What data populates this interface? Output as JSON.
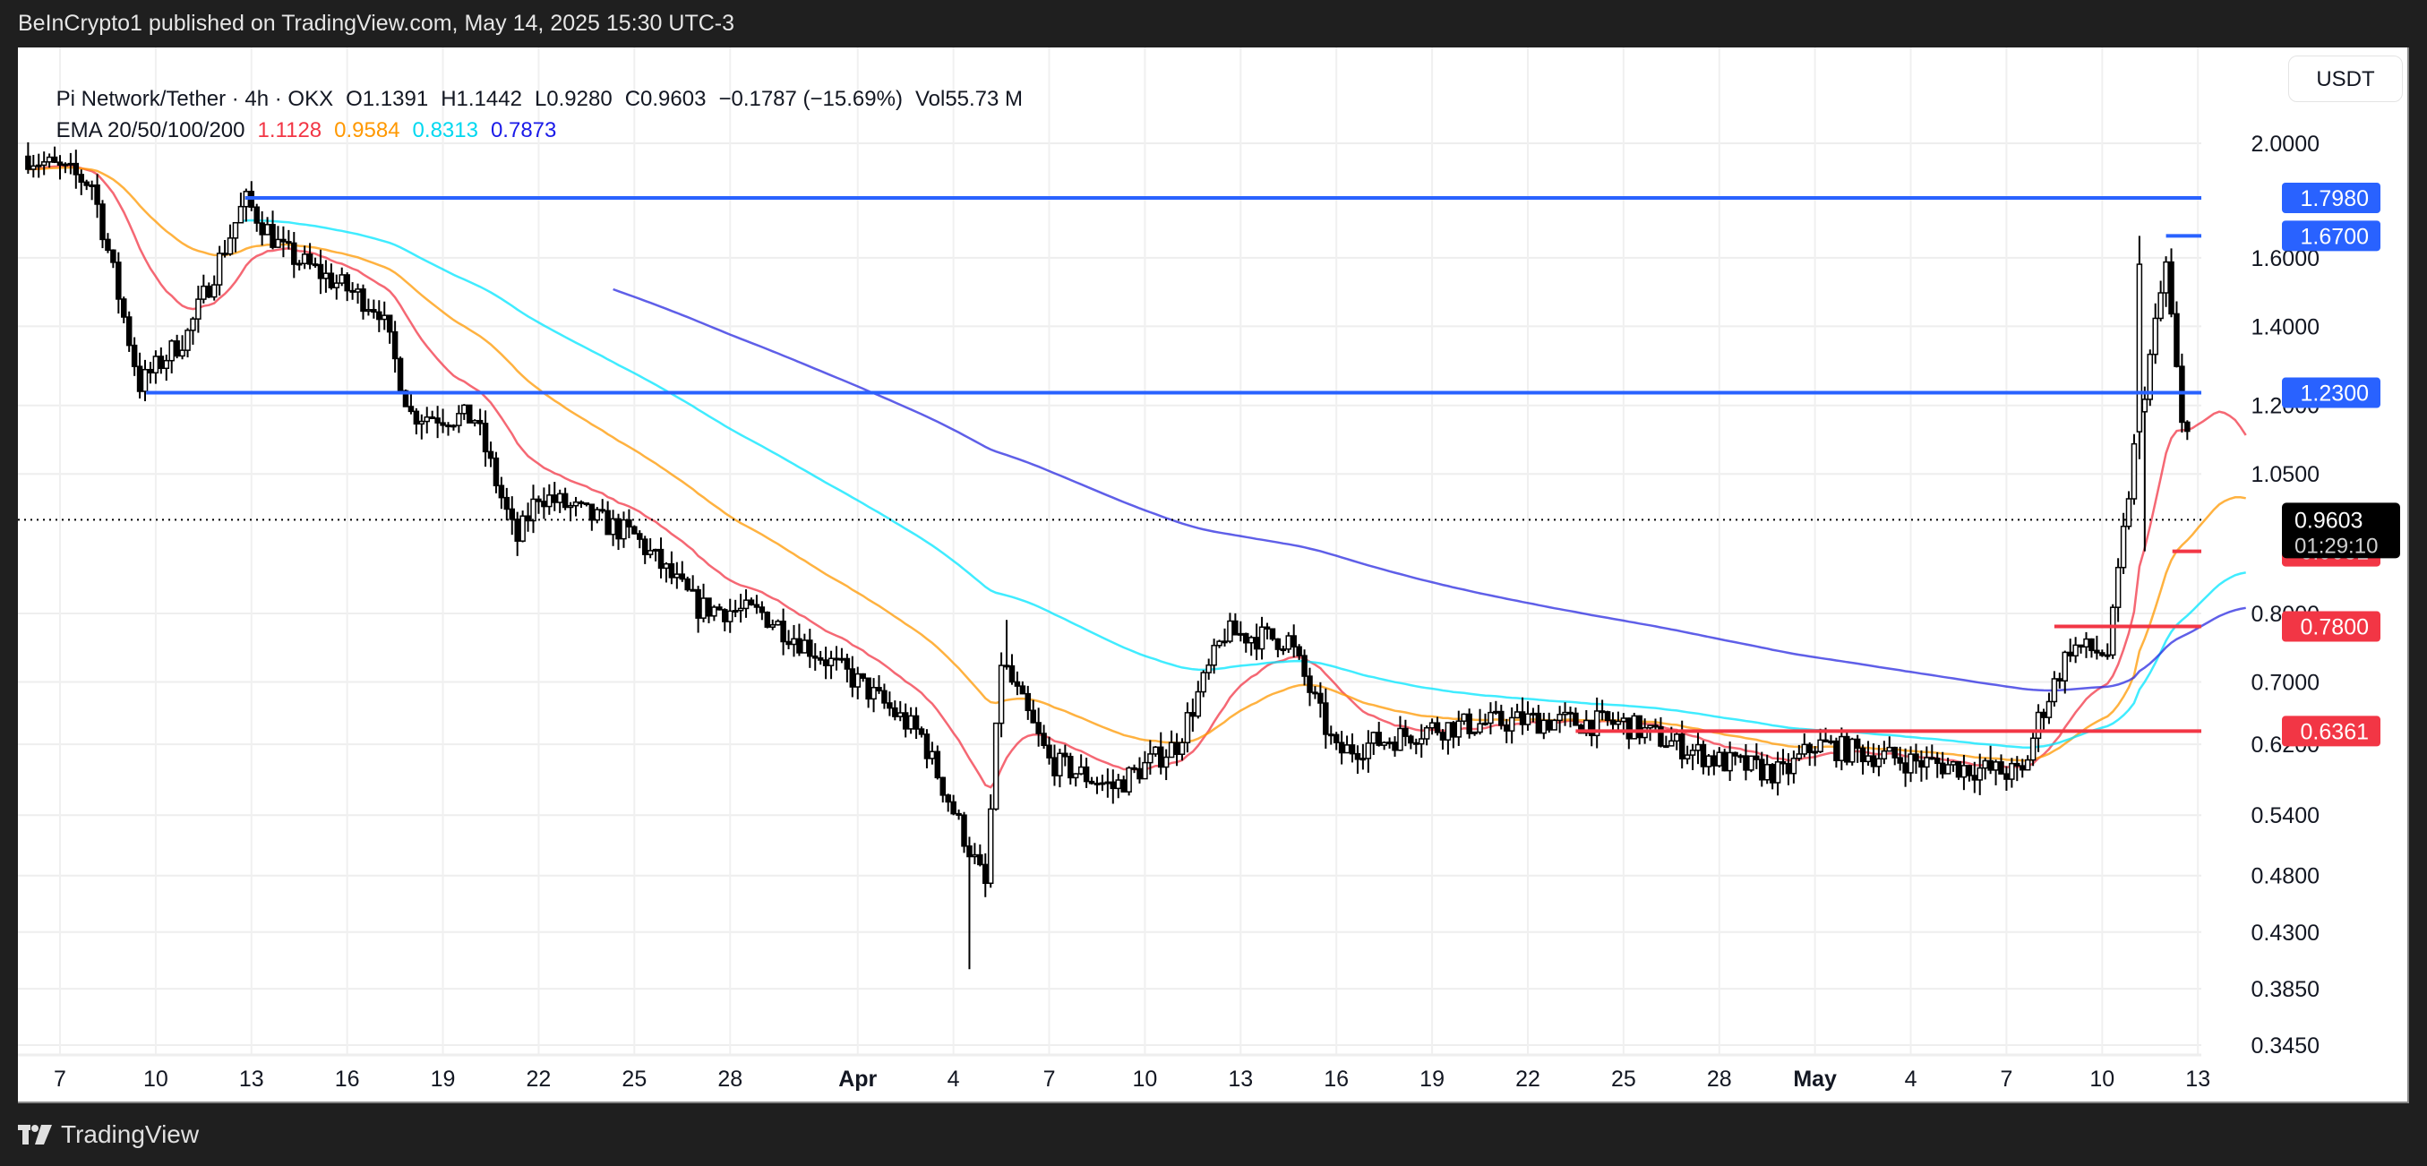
{
  "topbar": {
    "publish_text": "BeInCrypto1 published on TradingView.com, May 14, 2025 15:30 UTC-3"
  },
  "legend": {
    "symbol": "Pi Network/Tether · 4h · OKX",
    "open": "O1.1391",
    "high": "H1.1442",
    "low": "L0.9280",
    "close": "C0.9603",
    "change": "−0.1787 (−15.69%)",
    "volume": "Vol55.73 M",
    "ema_label": "EMA 20/50/100/200",
    "ema20": "1.1128",
    "ema50": "0.9584",
    "ema100": "0.8313",
    "ema200": "0.7873"
  },
  "currency_button": "USDT",
  "footer": {
    "brand": "TradingView"
  },
  "colors": {
    "ema20": "#f23645",
    "ema50": "#ff9800",
    "ema100": "#00e5ff",
    "ema200": "#2a2ae0",
    "resistance": "#2962ff",
    "support": "#f23645",
    "current_price_bg": "#000000"
  },
  "chart_data": {
    "type": "candlestick",
    "title": "Pi Network/Tether · 4h · OKX",
    "scale": "log",
    "ylim": [
      0.345,
      2.0
    ],
    "y_ticks": [
      "2.0000",
      "1.6000",
      "1.4000",
      "1.2000",
      "1.0500",
      "0.8000",
      "0.7000",
      "0.6200",
      "0.5400",
      "0.4800",
      "0.4300",
      "0.3850",
      "0.3450"
    ],
    "x_ticks": [
      "7",
      "10",
      "13",
      "16",
      "19",
      "22",
      "25",
      "28",
      "Apr",
      "4",
      "7",
      "10",
      "13",
      "16",
      "19",
      "22",
      "25",
      "28",
      "May",
      "4",
      "7",
      "10",
      "13"
    ],
    "current_price": {
      "value": "0.9603",
      "countdown": "01:29:10"
    },
    "ohlc_last": {
      "open": 1.1391,
      "high": 1.1442,
      "low": 0.928,
      "close": 0.9603,
      "change": -0.1787,
      "change_pct": -15.69,
      "volume": "55.73M"
    },
    "ema_last": {
      "ema20": 1.1128,
      "ema50": 0.9584,
      "ema100": 0.8313,
      "ema200": 0.7873
    },
    "price_path_waypoints": [
      {
        "day": "Mar 6",
        "price": 1.95
      },
      {
        "day": "Mar 8",
        "price": 1.85
      },
      {
        "day": "Mar 9.5",
        "price": 1.25
      },
      {
        "day": "Mar 11",
        "price": 1.38
      },
      {
        "day": "Mar 12.8",
        "price": 1.79
      },
      {
        "day": "Mar 14",
        "price": 1.62
      },
      {
        "day": "Mar 17",
        "price": 1.45
      },
      {
        "day": "Mar 18",
        "price": 1.18
      },
      {
        "day": "Mar 20",
        "price": 1.17
      },
      {
        "day": "Mar 21.3",
        "price": 0.92
      },
      {
        "day": "Mar 22",
        "price": 1.01
      },
      {
        "day": "Mar 25",
        "price": 0.93
      },
      {
        "day": "Mar 27",
        "price": 0.81
      },
      {
        "day": "Mar 29",
        "price": 0.8
      },
      {
        "day": "Apr 1",
        "price": 0.7
      },
      {
        "day": "Apr 3",
        "price": 0.63
      },
      {
        "day": "Apr 5",
        "price": 0.47
      },
      {
        "day": "Apr 5.5",
        "price": 0.73
      },
      {
        "day": "Apr 7",
        "price": 0.6
      },
      {
        "day": "Apr 9",
        "price": 0.57
      },
      {
        "day": "Apr 11",
        "price": 0.62
      },
      {
        "day": "Apr 12.5",
        "price": 0.77
      },
      {
        "day": "Apr 14.5",
        "price": 0.76
      },
      {
        "day": "Apr 16",
        "price": 0.61
      },
      {
        "day": "Apr 19",
        "price": 0.64
      },
      {
        "day": "Apr 22",
        "price": 0.65
      },
      {
        "day": "Apr 25",
        "price": 0.645
      },
      {
        "day": "Apr 28",
        "price": 0.6
      },
      {
        "day": "Apr 30",
        "price": 0.585
      },
      {
        "day": "May 1",
        "price": 0.62
      },
      {
        "day": "May 4",
        "price": 0.6
      },
      {
        "day": "May 7.5",
        "price": 0.585
      },
      {
        "day": "May 8",
        "price": 0.65
      },
      {
        "day": "May 9",
        "price": 0.75
      },
      {
        "day": "May 10.2",
        "price": 0.74
      },
      {
        "day": "May 11",
        "price": 1.1
      },
      {
        "day": "May 12",
        "price": 1.58
      },
      {
        "day": "May 12.5",
        "price": 1.15
      },
      {
        "day": "May 13.5",
        "price": 1.27
      },
      {
        "day": "May 14.5",
        "price": 0.96
      }
    ],
    "horizontal_levels": [
      {
        "value": 1.798,
        "label": "1.7980",
        "kind": "resistance",
        "start": "Mar 12.8"
      },
      {
        "value": 1.67,
        "label": "1.6700",
        "kind": "resistance",
        "start": "May 12"
      },
      {
        "value": 1.23,
        "label": "1.2300",
        "kind": "resistance",
        "start": "Mar 9.7"
      },
      {
        "value": 0.9031,
        "label": "0.9031",
        "kind": "support",
        "start": "May 12.2"
      },
      {
        "value": 0.78,
        "label": "0.7800",
        "kind": "support",
        "start": "May 8.5"
      },
      {
        "value": 0.6361,
        "label": "0.6361",
        "kind": "support",
        "start": "Apr 23.5"
      }
    ],
    "legend": [
      "EMA 20",
      "EMA 50",
      "EMA 100",
      "EMA 200"
    ],
    "grid": true
  }
}
